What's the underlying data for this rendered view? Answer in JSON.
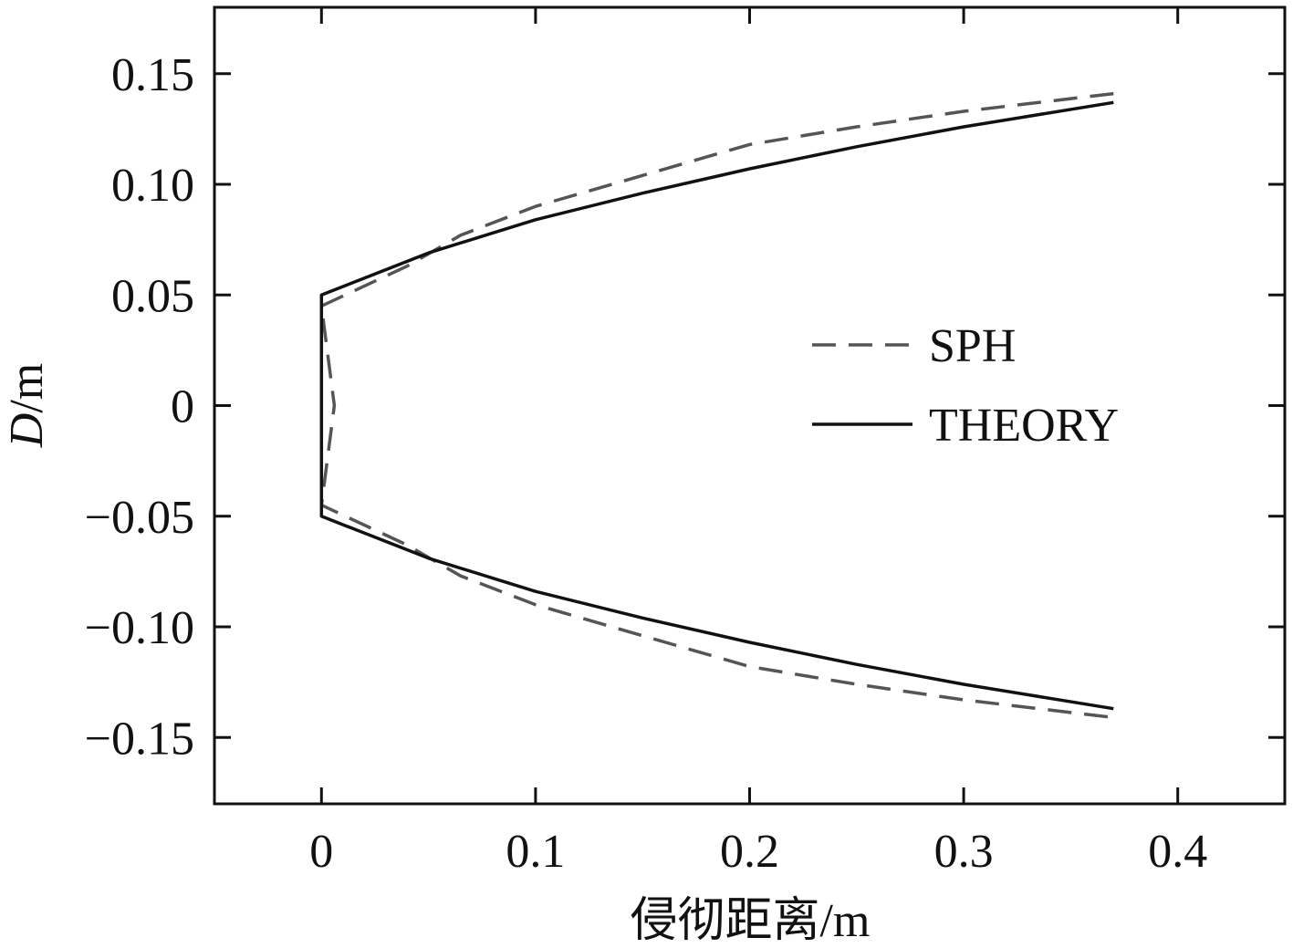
{
  "chart_data": {
    "type": "line",
    "title": "",
    "xlabel": "侵彻距离/m",
    "ylabel": "D/m",
    "ylabel_italic_part": "D",
    "ylabel_rest": "/m",
    "xlim": [
      -0.05,
      0.45
    ],
    "ylim": [
      -0.18,
      0.18
    ],
    "x_ticks": [
      0,
      0.1,
      0.2,
      0.3,
      0.4
    ],
    "x_tick_labels": [
      "0",
      "0.1",
      "0.2",
      "0.3",
      "0.4"
    ],
    "y_ticks": [
      0.15,
      0.1,
      0.05,
      0,
      -0.05,
      -0.1,
      -0.15
    ],
    "y_tick_labels": [
      "0.15",
      "0.10",
      "0.05",
      "0",
      "−0.05",
      "−0.10",
      "−0.15"
    ],
    "grid": false,
    "legend_position": "center-right",
    "series": [
      {
        "name": "SPH",
        "style": "dashed",
        "color": "#555555",
        "x": [
          0.37,
          0.3,
          0.25,
          0.2,
          0.15,
          0.1,
          0.065,
          0.04,
          0.0,
          0.006,
          0.0,
          0.04,
          0.065,
          0.1,
          0.15,
          0.2,
          0.25,
          0.3,
          0.37
        ],
        "y": [
          0.141,
          0.133,
          0.126,
          0.118,
          0.104,
          0.09,
          0.077,
          0.063,
          0.045,
          0.0,
          -0.045,
          -0.063,
          -0.077,
          -0.09,
          -0.104,
          -0.118,
          -0.126,
          -0.133,
          -0.141
        ]
      },
      {
        "name": "THEORY",
        "style": "solid",
        "color": "#111111",
        "x": [
          0.37,
          0.3,
          0.25,
          0.2,
          0.15,
          0.1,
          0.05,
          0.0,
          0.0,
          0.05,
          0.1,
          0.15,
          0.2,
          0.25,
          0.3,
          0.37
        ],
        "y": [
          0.137,
          0.126,
          0.117,
          0.107,
          0.096,
          0.084,
          0.069,
          0.05,
          -0.05,
          -0.069,
          -0.084,
          -0.096,
          -0.107,
          -0.117,
          -0.126,
          -0.137
        ]
      }
    ]
  }
}
